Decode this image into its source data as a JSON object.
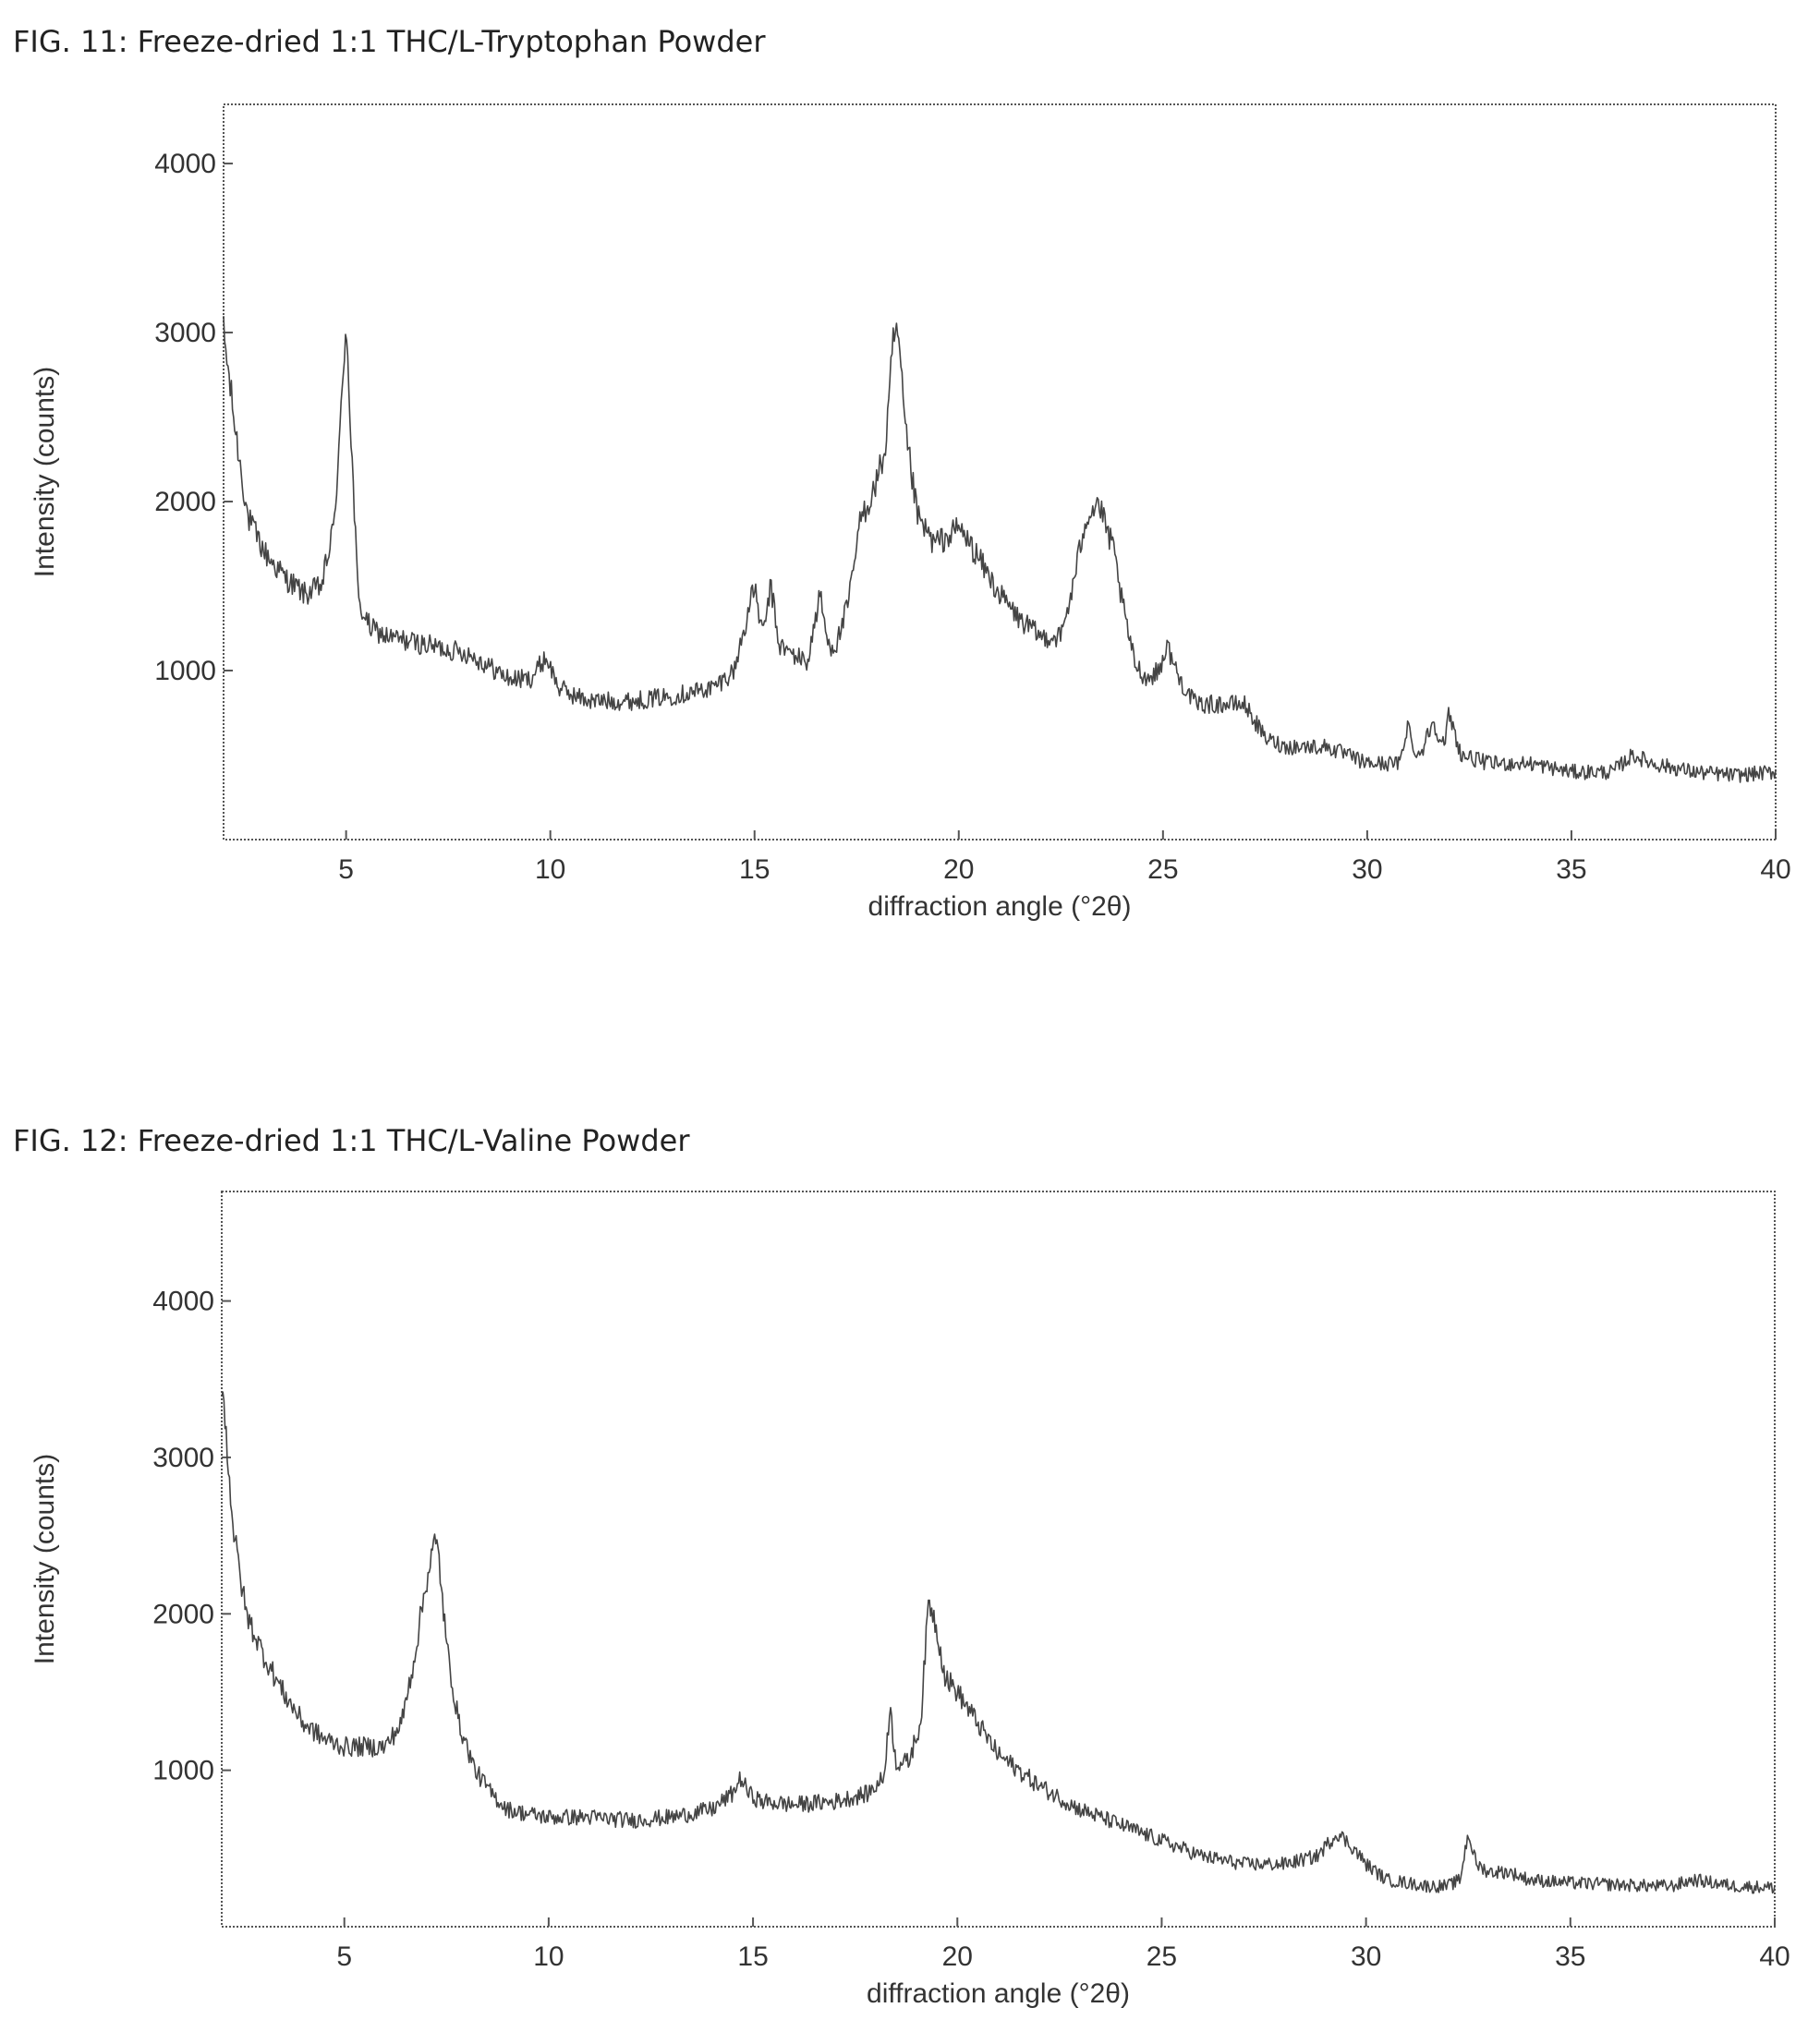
{
  "figures": [
    {
      "caption": "FIG. 11: Freeze-dried 1:1 THC/L-Tryptophan Powder"
    },
    {
      "caption": "FIG. 12: Freeze-dried 1:1 THC/L-Valine Powder"
    }
  ],
  "chart_data": [
    {
      "type": "line",
      "title": "FIG. 11: Freeze-dried 1:1 THC/L-Tryptophan Powder",
      "xlabel": "diffraction angle (°2θ)",
      "ylabel": "Intensity (counts)",
      "xlim": [
        2,
        40
      ],
      "ylim": [
        0,
        4350
      ],
      "xticks": [
        5,
        10,
        15,
        20,
        25,
        30,
        35,
        40
      ],
      "yticks": [
        1000,
        2000,
        3000,
        4000
      ],
      "grid": false,
      "legend": "none",
      "color": "#444444",
      "series": [
        {
          "x": [
            2.0,
            2.3,
            2.6,
            3.0,
            3.5,
            4.0,
            4.4,
            4.7,
            4.9,
            5.0,
            5.1,
            5.3,
            5.6,
            6.0,
            7.0,
            8.0,
            9.0,
            9.5,
            9.9,
            10.2,
            10.6,
            11.0,
            12.0,
            13.0,
            14.0,
            14.5,
            14.8,
            15.0,
            15.2,
            15.4,
            15.6,
            15.9,
            16.3,
            16.6,
            16.8,
            17.0,
            17.3,
            17.6,
            17.9,
            18.2,
            18.4,
            18.5,
            18.7,
            19.0,
            19.4,
            19.8,
            20.0,
            20.4,
            21.0,
            21.5,
            22.0,
            22.5,
            22.8,
            23.1,
            23.4,
            23.8,
            24.0,
            24.3,
            24.6,
            24.9,
            25.1,
            25.4,
            25.8,
            26.2,
            27.0,
            27.5,
            28.0,
            29.0,
            30.0,
            30.8,
            31.0,
            31.1,
            31.3,
            31.6,
            31.9,
            32.0,
            32.3,
            33.0,
            34.0,
            35.0,
            36.0,
            36.5,
            37.0,
            38.0,
            39.0,
            40.0
          ],
          "values": [
            3000,
            2400,
            1900,
            1700,
            1550,
            1450,
            1500,
            1850,
            2600,
            3100,
            2500,
            1400,
            1250,
            1200,
            1150,
            1100,
            950,
            950,
            1080,
            900,
            850,
            820,
            820,
            850,
            900,
            1000,
            1300,
            1500,
            1200,
            1500,
            1150,
            1100,
            1050,
            1450,
            1150,
            1150,
            1400,
            1900,
            2050,
            2300,
            2950,
            3000,
            2400,
            1900,
            1750,
            1800,
            1850,
            1700,
            1450,
            1300,
            1200,
            1200,
            1500,
            1900,
            2000,
            1700,
            1400,
            1050,
            950,
            1000,
            1150,
            950,
            800,
            800,
            800,
            600,
            550,
            550,
            450,
            450,
            700,
            550,
            500,
            700,
            550,
            750,
            500,
            450,
            450,
            400,
            400,
            500,
            450,
            400,
            380,
            400
          ]
        }
      ]
    },
    {
      "type": "line",
      "title": "FIG. 12: Freeze-dried 1:1 THC/L-Valine Powder",
      "xlabel": "diffraction angle (°2θ)",
      "ylabel": "Intensity (counts)",
      "xlim": [
        2,
        40
      ],
      "ylim": [
        0,
        4700
      ],
      "xticks": [
        5,
        10,
        15,
        20,
        25,
        30,
        35,
        40
      ],
      "yticks": [
        1000,
        2000,
        3000,
        4000
      ],
      "grid": false,
      "legend": "none",
      "color": "#444444",
      "series": [
        {
          "x": [
            2.0,
            2.3,
            2.6,
            3.0,
            3.5,
            4.0,
            4.5,
            5.0,
            5.5,
            6.0,
            6.4,
            6.7,
            7.0,
            7.2,
            7.3,
            7.5,
            7.8,
            8.2,
            8.6,
            9.0,
            9.5,
            10.0,
            11.0,
            12.0,
            13.0,
            14.0,
            14.5,
            14.7,
            14.9,
            15.2,
            16.0,
            17.0,
            17.8,
            18.2,
            18.35,
            18.5,
            18.8,
            19.1,
            19.3,
            19.5,
            19.7,
            20.0,
            20.5,
            21.0,
            22.0,
            23.0,
            24.0,
            25.0,
            26.0,
            27.0,
            28.0,
            28.8,
            29.3,
            29.7,
            30.0,
            30.5,
            31.0,
            31.5,
            32.0,
            32.3,
            32.5,
            32.7,
            33.0,
            33.5,
            34.0,
            35.0,
            36.0,
            37.0,
            37.5,
            38.0,
            39.0,
            40.0
          ],
          "values": [
            3500,
            2500,
            2000,
            1750,
            1500,
            1300,
            1200,
            1150,
            1150,
            1150,
            1300,
            1700,
            2200,
            2450,
            2400,
            1800,
            1300,
            1000,
            850,
            750,
            720,
            700,
            700,
            680,
            700,
            750,
            850,
            950,
            850,
            800,
            780,
            800,
            850,
            950,
            1400,
            1050,
            1050,
            1300,
            2100,
            1900,
            1600,
            1500,
            1300,
            1100,
            900,
            750,
            650,
            550,
            450,
            400,
            400,
            450,
            600,
            500,
            400,
            300,
            280,
            260,
            260,
            300,
            600,
            400,
            350,
            350,
            300,
            280,
            270,
            260,
            260,
            300,
            260,
            250
          ]
        }
      ]
    }
  ]
}
